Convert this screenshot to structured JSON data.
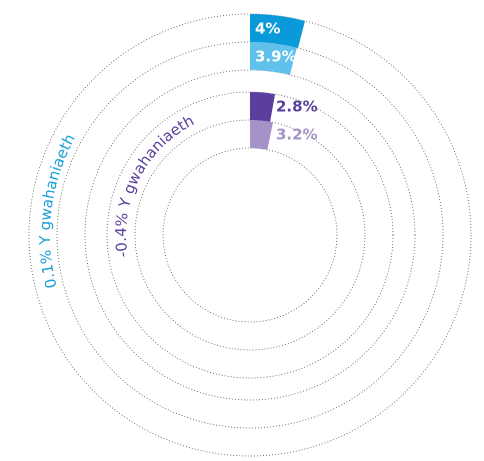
{
  "chart_data": {
    "type": "radial_bar",
    "values": [
      4,
      3.9,
      2.8,
      3.2
    ],
    "value_labels": [
      "4%",
      "3.9%",
      "2.8%",
      "3.2%"
    ],
    "colors": [
      "#0a9ad9",
      "#5fc1ec",
      "#5b3f9e",
      "#a593c8"
    ],
    "ylim": [
      0,
      100
    ],
    "annotations": [
      "0.1% Y gwahaniaeth",
      "-0.4% Y gwahaniaeth"
    ],
    "annotation_colors": [
      "#1a9fd8",
      "#5b3f9e"
    ]
  }
}
